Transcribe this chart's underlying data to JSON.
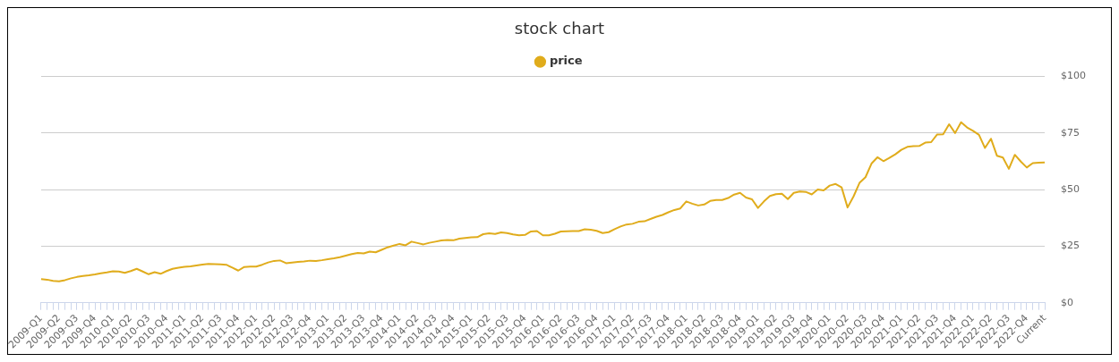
{
  "chart_data": {
    "type": "line",
    "title": "stock chart",
    "categories": [
      "2009-Q1",
      null,
      null,
      "2009-Q2",
      null,
      null,
      "2009-Q3",
      null,
      null,
      "2009-Q4",
      null,
      null,
      "2010-Q1",
      null,
      null,
      "2010-Q2",
      null,
      null,
      "2010-Q3",
      null,
      null,
      "2010-Q4",
      null,
      null,
      "2011-Q1",
      null,
      null,
      "2011-Q2",
      null,
      null,
      "2011-Q3",
      null,
      null,
      "2011-Q4",
      null,
      null,
      "2012-Q1",
      null,
      null,
      "2012-Q2",
      null,
      null,
      "2012-Q3",
      null,
      null,
      "2012-Q4",
      null,
      null,
      "2013-Q1",
      null,
      null,
      "2013-Q2",
      null,
      null,
      "2013-Q3",
      null,
      null,
      "2013-Q4",
      null,
      null,
      "2014-Q1",
      null,
      null,
      "2014-Q2",
      null,
      null,
      "2014-Q3",
      null,
      null,
      "2014-Q4",
      null,
      null,
      "2015-Q1",
      null,
      null,
      "2015-Q2",
      null,
      null,
      "2015-Q3",
      null,
      null,
      "2015-Q4",
      null,
      null,
      "2016-Q1",
      null,
      null,
      "2016-Q2",
      null,
      null,
      "2016-Q3",
      null,
      null,
      "2016-Q4",
      null,
      null,
      "2017-Q1",
      null,
      null,
      "2017-Q2",
      null,
      null,
      "2017-Q3",
      null,
      null,
      "2017-Q4",
      null,
      null,
      "2018-Q1",
      null,
      null,
      "2018-Q2",
      null,
      null,
      "2018-Q3",
      null,
      null,
      "2018-Q4",
      null,
      null,
      "2019-Q1",
      null,
      null,
      "2019-Q2",
      null,
      null,
      "2019-Q3",
      null,
      null,
      "2019-Q4",
      null,
      null,
      "2020-Q1",
      null,
      null,
      "2020-Q2",
      null,
      null,
      "2020-Q3",
      null,
      null,
      "2020-Q4",
      null,
      null,
      "2021-Q1",
      null,
      null,
      "2021-Q2",
      null,
      null,
      "2021-Q3",
      null,
      null,
      "2021-Q4",
      null,
      null,
      "2022-Q1",
      null,
      null,
      "2022-Q2",
      null,
      null,
      "2022-Q3",
      null,
      null,
      "2022-Q4",
      null,
      null,
      "Current"
    ],
    "series": [
      {
        "name": "price",
        "color": "#e0ac1c",
        "values": [
          10.5,
          10.2,
          9.7,
          9.5,
          10.0,
          10.8,
          11.4,
          11.8,
          12.1,
          12.5,
          13.0,
          13.4,
          13.9,
          13.8,
          13.2,
          14.0,
          15.0,
          13.8,
          12.6,
          13.5,
          12.8,
          14.0,
          15.0,
          15.5,
          15.9,
          16.1,
          16.5,
          16.9,
          17.2,
          17.1,
          17.0,
          16.8,
          15.5,
          14.2,
          15.8,
          16.0,
          16.0,
          16.8,
          17.8,
          18.5,
          18.7,
          17.5,
          17.8,
          18.1,
          18.3,
          18.6,
          18.5,
          18.8,
          19.2,
          19.6,
          20.1,
          20.8,
          21.5,
          22.0,
          21.8,
          22.6,
          22.3,
          23.4,
          24.5,
          25.3,
          26.0,
          25.4,
          27.0,
          26.4,
          25.8,
          26.5,
          27.0,
          27.5,
          27.7,
          27.6,
          28.3,
          28.6,
          28.9,
          29.0,
          30.3,
          30.7,
          30.4,
          31.1,
          30.8,
          30.2,
          29.8,
          30.0,
          31.5,
          31.7,
          29.8,
          29.8,
          30.5,
          31.5,
          31.6,
          31.7,
          31.7,
          32.5,
          32.3,
          31.8,
          30.8,
          31.2,
          32.5,
          33.7,
          34.6,
          34.9,
          35.8,
          36.0,
          37.0,
          38.0,
          38.8,
          40.0,
          41.0,
          41.7,
          44.8,
          43.8,
          43.0,
          43.4,
          45.0,
          45.4,
          45.4,
          46.3,
          47.8,
          48.6,
          46.5,
          45.7,
          41.9,
          44.8,
          47.2,
          48.0,
          48.2,
          45.8,
          48.6,
          49.2,
          49.0,
          47.9,
          50.1,
          49.7,
          51.8,
          52.5,
          51.0,
          42.1,
          47.0,
          53.0,
          55.5,
          61.5,
          64.3,
          62.6,
          64.0,
          65.6,
          67.6,
          68.9,
          69.2,
          69.3,
          70.8,
          71.0,
          74.4,
          74.5,
          78.9,
          75.0,
          79.8,
          77.5,
          76.0,
          74.2,
          68.4,
          72.5,
          65.0,
          64.2,
          59.2,
          65.4,
          62.4,
          59.8,
          61.7,
          61.9,
          62.0
        ]
      }
    ],
    "ylim": [
      0,
      100
    ],
    "yticks": [
      {
        "value": 0,
        "label": "$0"
      },
      {
        "value": 25,
        "label": "$25"
      },
      {
        "value": 50,
        "label": "$50"
      },
      {
        "value": 75,
        "label": "$75"
      },
      {
        "value": 100,
        "label": "$100"
      }
    ],
    "grid": "y",
    "legend": "top",
    "marker": "none",
    "line_style": "solid"
  }
}
